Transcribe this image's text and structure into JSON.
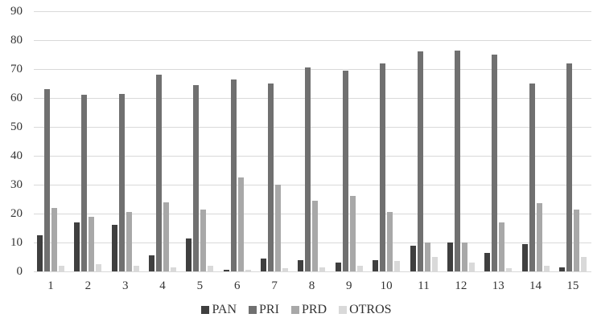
{
  "chart_data": {
    "type": "bar",
    "title": "",
    "xlabel": "",
    "ylabel": "",
    "categories": [
      "1",
      "2",
      "3",
      "4",
      "5",
      "6",
      "7",
      "8",
      "9",
      "10",
      "11",
      "12",
      "13",
      "14",
      "15"
    ],
    "series": [
      {
        "name": "PAN",
        "color": "#3f3f3f",
        "values": [
          12.5,
          17,
          16,
          5.5,
          11.5,
          0.5,
          4.5,
          4,
          3,
          4,
          9,
          10,
          6.5,
          9.5,
          1.5
        ]
      },
      {
        "name": "PRI",
        "color": "#707070",
        "values": [
          63,
          61,
          61.5,
          68,
          64.5,
          66.5,
          65,
          70.5,
          69.5,
          72,
          76,
          76.5,
          75,
          65,
          72
        ]
      },
      {
        "name": "PRD",
        "color": "#a8a8a8",
        "values": [
          22,
          19,
          20.5,
          24,
          21.5,
          32.5,
          30,
          24.5,
          26,
          20.5,
          10,
          10,
          17,
          23.5,
          21.5
        ]
      },
      {
        "name": "OTROS",
        "color": "#d9d9d9",
        "values": [
          2,
          2.5,
          2,
          1.5,
          2,
          0.5,
          1,
          1.5,
          2,
          3.5,
          5,
          3,
          1,
          2,
          5
        ]
      }
    ],
    "ylim": [
      0,
      90
    ],
    "ytick_step": 10,
    "yticks": [
      "0",
      "10",
      "20",
      "30",
      "40",
      "50",
      "60",
      "70",
      "80",
      "90"
    ],
    "grid": true,
    "gridline_color": "#d9d9d9",
    "text_color": "#333333",
    "legend_position": "bottom"
  }
}
